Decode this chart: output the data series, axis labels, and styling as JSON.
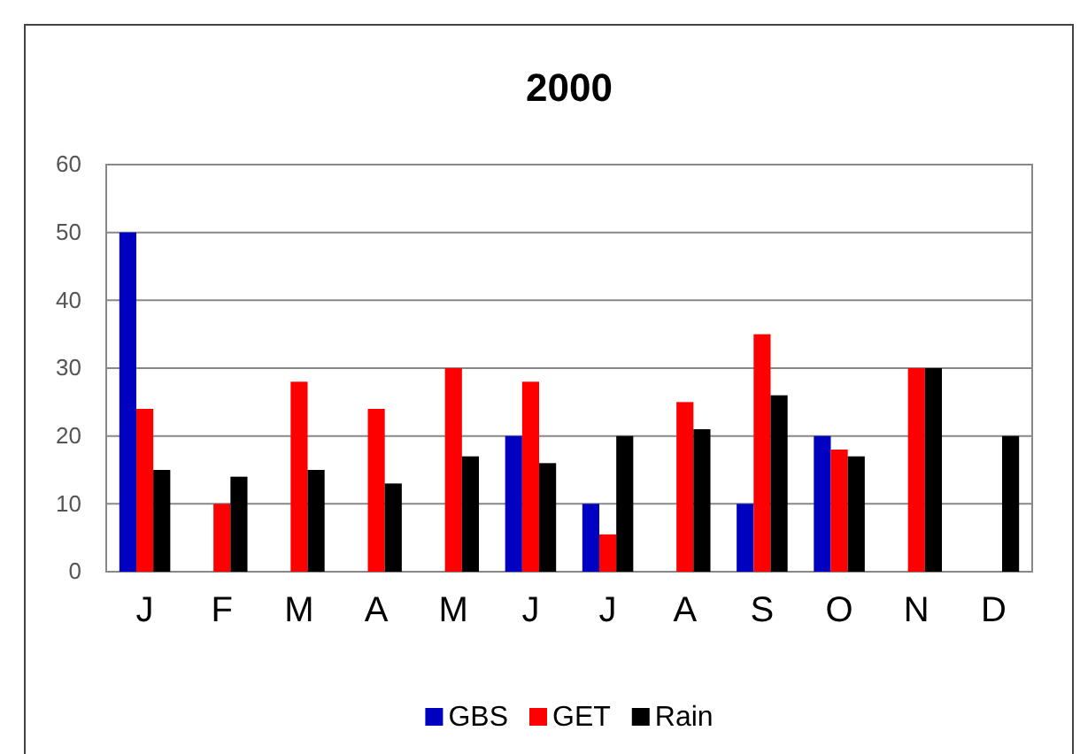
{
  "chart_data": {
    "type": "bar",
    "title": "2000",
    "categories": [
      "J",
      "F",
      "M",
      "A",
      "M",
      "J",
      "J",
      "A",
      "S",
      "O",
      "N",
      "D"
    ],
    "series": [
      {
        "name": "GBS",
        "color": "#0000c0",
        "values": [
          50,
          null,
          null,
          null,
          null,
          20,
          10,
          null,
          10,
          20,
          null,
          null
        ]
      },
      {
        "name": "GET",
        "color": "#ff0000",
        "values": [
          24,
          10,
          28,
          24,
          30,
          28,
          5.5,
          25,
          35,
          18,
          30,
          null
        ]
      },
      {
        "name": "Rain",
        "color": "#000000",
        "values": [
          15,
          14,
          15,
          13,
          17,
          16,
          20,
          21,
          26,
          17,
          30,
          20
        ]
      }
    ],
    "ylim": [
      0,
      60
    ],
    "yticks": [
      0,
      10,
      20,
      30,
      40,
      50,
      60
    ],
    "grid": "y",
    "legend": "bottom"
  }
}
